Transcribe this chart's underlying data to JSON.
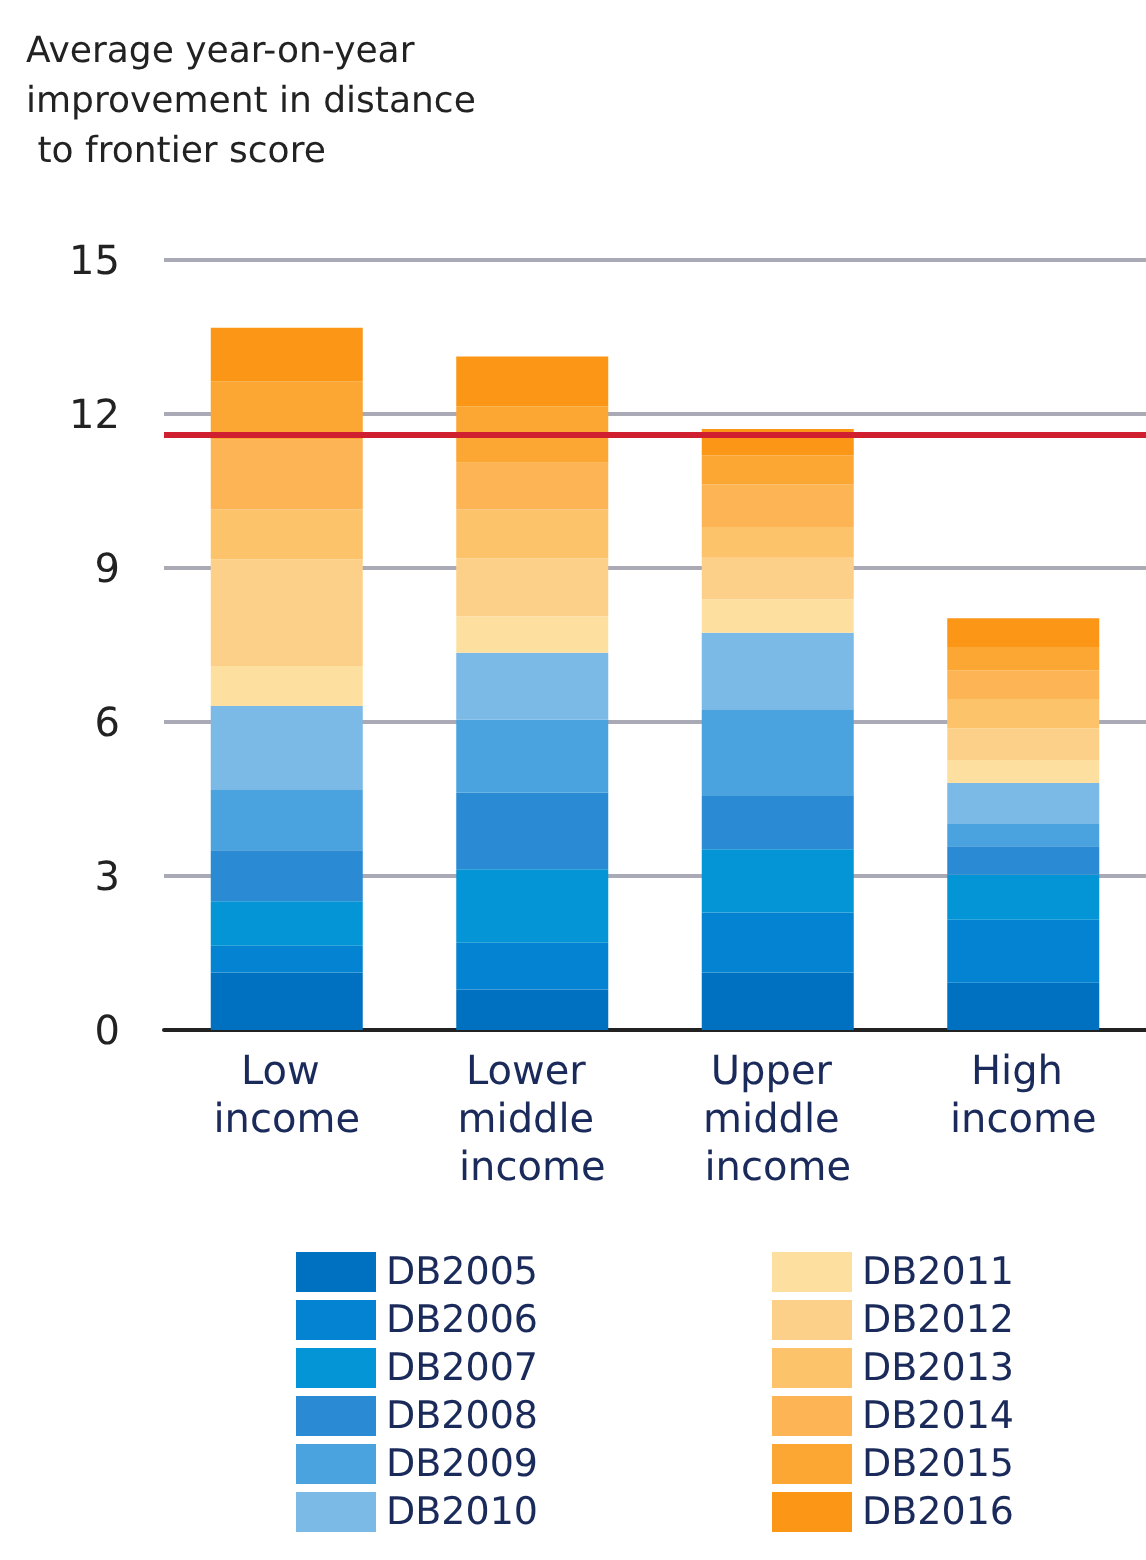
{
  "chart_data": {
    "type": "bar",
    "title": "Average year-on-year improvement in distance to frontier score",
    "categories": [
      "Low income",
      "Lower middle income",
      "Upper middle income",
      "High income"
    ],
    "stacked": true,
    "ylim": [
      0,
      15
    ],
    "yticks": [
      0,
      3,
      6,
      9,
      12,
      15
    ],
    "grid": "y",
    "legend": "bottom",
    "series": [
      {
        "name": "DB2005",
        "color": "#0070c0",
        "values": [
          1.12,
          0.79,
          1.12,
          0.92
        ]
      },
      {
        "name": "DB2006",
        "color": "#0383d1",
        "values": [
          0.52,
          0.91,
          1.17,
          1.23
        ]
      },
      {
        "name": "DB2007",
        "color": "#0395d5",
        "values": [
          0.87,
          1.43,
          1.23,
          0.88
        ]
      },
      {
        "name": "DB2008",
        "color": "#2a8ad4",
        "values": [
          0.99,
          1.49,
          1.04,
          0.55
        ]
      },
      {
        "name": "DB2009",
        "color": "#4aa3de",
        "values": [
          1.19,
          1.43,
          1.69,
          0.45
        ]
      },
      {
        "name": "DB2010",
        "color": "#7bb9e6",
        "values": [
          1.62,
          1.3,
          1.49,
          0.78
        ]
      },
      {
        "name": "DB2011",
        "color": "#fde0a0",
        "values": [
          0.78,
          0.71,
          0.65,
          0.45
        ]
      },
      {
        "name": "DB2012",
        "color": "#fdd08a",
        "values": [
          2.08,
          1.13,
          0.81,
          0.62
        ]
      },
      {
        "name": "DB2013",
        "color": "#fdc36b",
        "values": [
          0.97,
          0.95,
          0.6,
          0.57
        ]
      },
      {
        "name": "DB2014",
        "color": "#fcb454",
        "values": [
          1.36,
          0.91,
          0.83,
          0.56
        ]
      },
      {
        "name": "DB2015",
        "color": "#fca733",
        "values": [
          1.14,
          1.1,
          0.56,
          0.45
        ]
      },
      {
        "name": "DB2016",
        "color": "#fb9616",
        "values": [
          1.04,
          0.97,
          0.52,
          0.56
        ]
      }
    ],
    "ref_lines": [
      {
        "axis": "y",
        "value": 11.6,
        "color": "#d0202f"
      }
    ]
  }
}
